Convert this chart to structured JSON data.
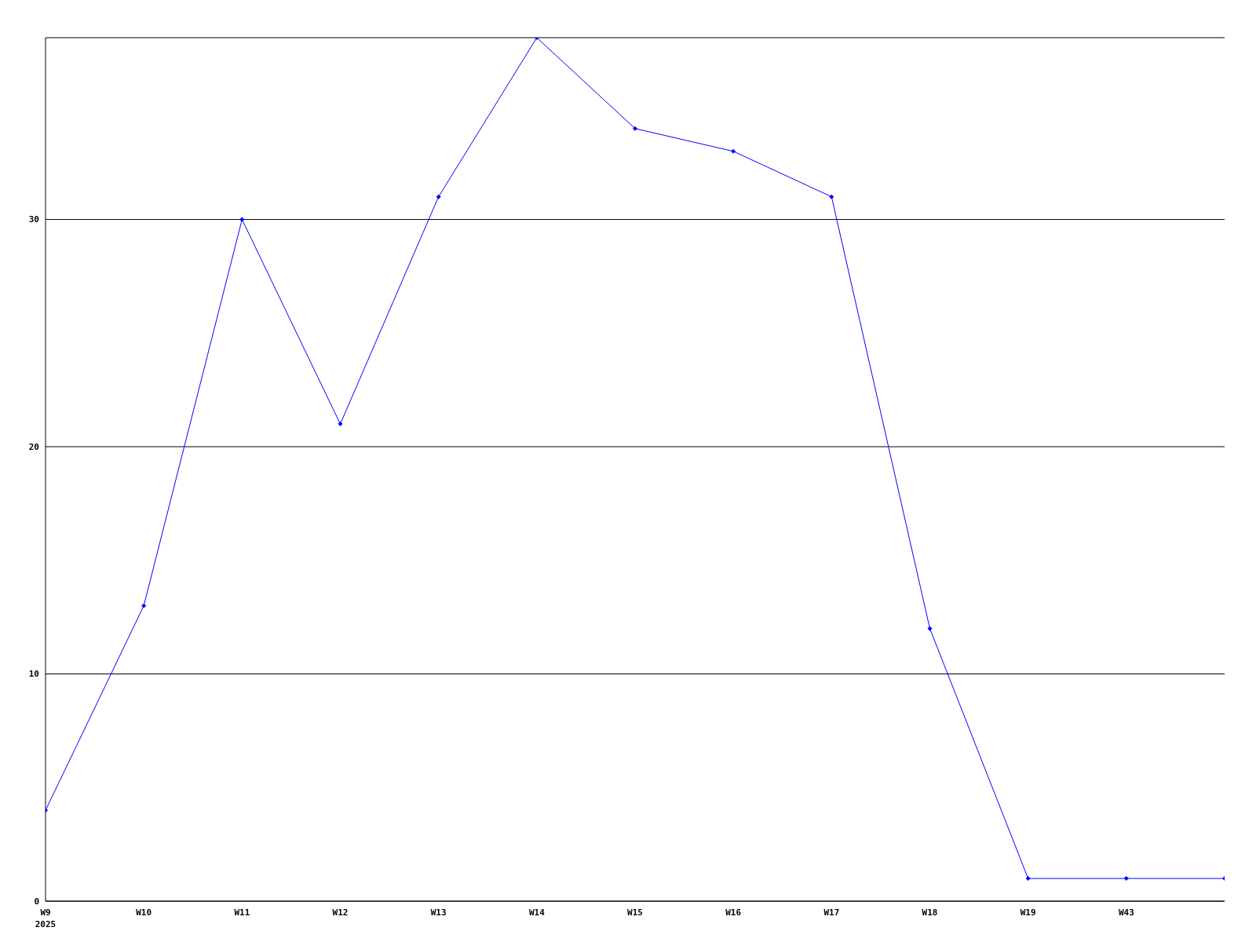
{
  "chart_data": {
    "type": "line",
    "categories": [
      "W9\n2025",
      "W10",
      "W11",
      "W12",
      "W13",
      "W14",
      "W15",
      "W16",
      "W17",
      "W18",
      "W19",
      "W43",
      null
    ],
    "series": [
      {
        "color": "#0000ff",
        "values": [
          4,
          13,
          30,
          21,
          31,
          38,
          34,
          33,
          31,
          12,
          1,
          1,
          1
        ]
      }
    ],
    "ylim": [
      0,
      38
    ],
    "yticks": [
      0,
      10,
      20,
      30
    ],
    "grid": "y",
    "marker": "diamond",
    "line_style": "solid"
  }
}
